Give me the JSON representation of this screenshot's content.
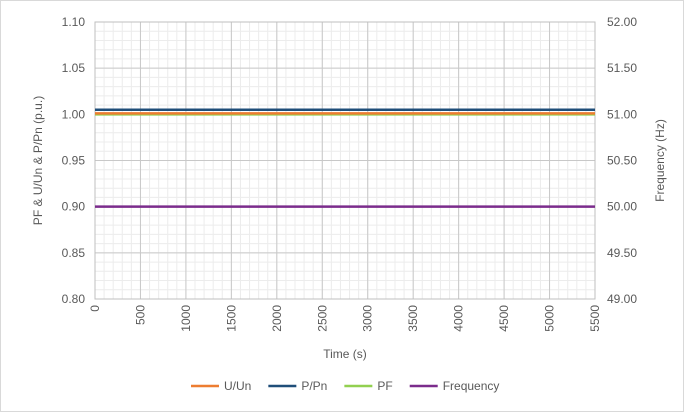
{
  "chart_data": {
    "type": "line",
    "title": "",
    "xlabel": "Time (s)",
    "ylabel": "PF & U/Un & P/Pn (p.u.)",
    "y2label": "Frequency (Hz)",
    "xlim": [
      0,
      5500
    ],
    "ylim": [
      0.8,
      1.1
    ],
    "y2lim": [
      49.0,
      52.0
    ],
    "x_ticks": [
      "0",
      "500",
      "1000",
      "1500",
      "2000",
      "2500",
      "3000",
      "3500",
      "4000",
      "4500",
      "5000",
      "5500"
    ],
    "y_ticks": [
      "0.80",
      "0.85",
      "0.90",
      "0.95",
      "1.00",
      "1.05",
      "1.10"
    ],
    "y2_ticks": [
      "49.00",
      "49.50",
      "50.00",
      "50.50",
      "51.00",
      "51.50",
      "52.00"
    ],
    "grid": true,
    "legend_position": "bottom",
    "series": [
      {
        "name": "U/Un",
        "axis": "left",
        "color": "#ed7d31",
        "x": [
          0,
          5500
        ],
        "y": [
          1.001,
          1.001
        ]
      },
      {
        "name": "P/Pn",
        "axis": "left",
        "color": "#1f4e79",
        "x": [
          0,
          5500
        ],
        "y": [
          1.005,
          1.005
        ]
      },
      {
        "name": "PF",
        "axis": "left",
        "color": "#92d050",
        "x": [
          0,
          5500
        ],
        "y": [
          1.0,
          1.0
        ]
      },
      {
        "name": "Frequency",
        "axis": "right",
        "color": "#7b2c8c",
        "x": [
          0,
          5500
        ],
        "y": [
          50.0,
          50.0
        ]
      }
    ]
  }
}
